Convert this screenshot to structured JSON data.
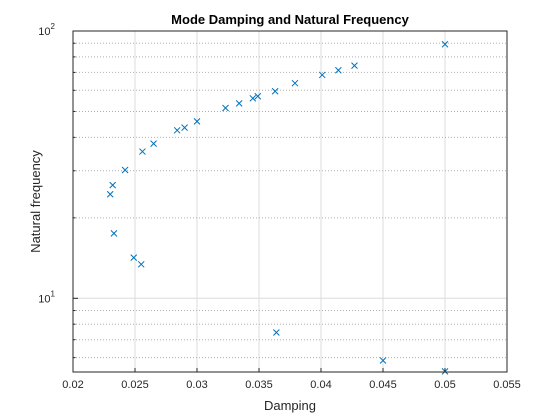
{
  "chart_data": {
    "type": "scatter",
    "title": "Mode Damping and Natural Frequency",
    "xlabel": "Damping",
    "ylabel": "Natural frequency",
    "xscale": "linear",
    "yscale": "log",
    "xlim": [
      0.02,
      0.055
    ],
    "ylim": [
      5.3,
      100
    ],
    "grid": true,
    "minor_grid": true,
    "marker": "x",
    "marker_color": "#0072BD",
    "xticks": [
      0.02,
      0.025,
      0.03,
      0.035,
      0.04,
      0.045,
      0.05,
      0.055
    ],
    "xtick_labels": [
      "0.02",
      "0.025",
      "0.03",
      "0.035",
      "0.04",
      "0.045",
      "0.05",
      "0.055"
    ],
    "ytick_labels": [
      {
        "value": 10,
        "base": "10",
        "exp": "1"
      },
      {
        "value": 100,
        "base": "10",
        "exp": "2"
      }
    ],
    "series": [
      {
        "points": [
          {
            "x": 0.05,
            "y": 89.2
          },
          {
            "x": 0.0427,
            "y": 74.2
          },
          {
            "x": 0.0414,
            "y": 71.3
          },
          {
            "x": 0.0401,
            "y": 68.5
          },
          {
            "x": 0.0379,
            "y": 63.8
          },
          {
            "x": 0.0363,
            "y": 59.5
          },
          {
            "x": 0.0349,
            "y": 57.0
          },
          {
            "x": 0.0345,
            "y": 56.0
          },
          {
            "x": 0.0334,
            "y": 53.6
          },
          {
            "x": 0.0323,
            "y": 51.5
          },
          {
            "x": 0.03,
            "y": 45.9
          },
          {
            "x": 0.029,
            "y": 43.5
          },
          {
            "x": 0.0284,
            "y": 42.5
          },
          {
            "x": 0.0265,
            "y": 37.9
          },
          {
            "x": 0.0256,
            "y": 35.4
          },
          {
            "x": 0.0242,
            "y": 30.2
          },
          {
            "x": 0.0232,
            "y": 26.5
          },
          {
            "x": 0.023,
            "y": 24.5
          },
          {
            "x": 0.0233,
            "y": 17.5
          },
          {
            "x": 0.0249,
            "y": 14.2
          },
          {
            "x": 0.0255,
            "y": 13.4
          },
          {
            "x": 0.0364,
            "y": 7.45
          },
          {
            "x": 0.045,
            "y": 5.85
          },
          {
            "x": 0.05,
            "y": 5.33
          }
        ]
      }
    ]
  }
}
